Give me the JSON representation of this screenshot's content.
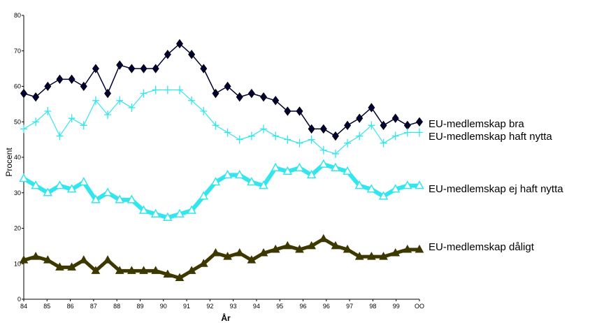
{
  "chart_data": {
    "type": "line",
    "xlabel": "År",
    "ylabel": "Procent",
    "ylim": [
      0,
      80
    ],
    "yticks": [
      0,
      10,
      20,
      30,
      40,
      50,
      60,
      70,
      80
    ],
    "grid": false,
    "legend": "right, at line ends",
    "x_tick_labels": [
      "84",
      "85",
      "86",
      "87",
      "88",
      "89",
      "90",
      "91",
      "92",
      "93",
      "94",
      "95",
      "96",
      "96",
      "97",
      "98",
      "99",
      "OO"
    ],
    "series": [
      {
        "name": "EU-medlemskap bra",
        "color": "#000033",
        "marker": "diamond",
        "values": [
          58,
          57,
          60,
          62,
          62,
          60,
          65,
          58,
          66,
          65,
          65,
          65,
          69,
          72,
          69,
          65,
          58,
          60,
          57,
          58,
          57,
          56,
          53,
          53,
          48,
          48,
          46,
          49,
          51,
          54,
          49,
          51,
          49,
          50
        ]
      },
      {
        "name": "EU-medlemskap haft nytta",
        "color": "#33e6ee",
        "marker": "plus",
        "values": [
          48,
          50,
          53,
          46,
          51,
          49,
          56,
          52,
          56,
          54,
          58,
          59,
          59,
          59,
          56,
          53,
          49,
          47,
          45,
          46,
          48,
          46,
          45,
          44,
          45,
          42,
          41,
          44,
          46,
          49,
          44,
          46,
          47,
          47
        ]
      },
      {
        "name": "EU-medlemskap ej haft nytta",
        "color": "#33e6ee",
        "marker": "triangle-open",
        "values": [
          34,
          32,
          30,
          32,
          31,
          33,
          28,
          30,
          28,
          28,
          25,
          24,
          23,
          24,
          25,
          29,
          33,
          35,
          35,
          33,
          32,
          37,
          36,
          37,
          35,
          38,
          37,
          36,
          32,
          31,
          29,
          31,
          32,
          32
        ]
      },
      {
        "name": "EU-medlemskap dåligt",
        "color": "#3d3800",
        "marker": "triangle-filled",
        "values": [
          11,
          12,
          11,
          9,
          9,
          11,
          8,
          11,
          8,
          8,
          8,
          8,
          7,
          6,
          8,
          10,
          13,
          12,
          13,
          11,
          13,
          14,
          15,
          14,
          15,
          17,
          15,
          14,
          12,
          12,
          12,
          13,
          14,
          14
        ]
      }
    ]
  }
}
